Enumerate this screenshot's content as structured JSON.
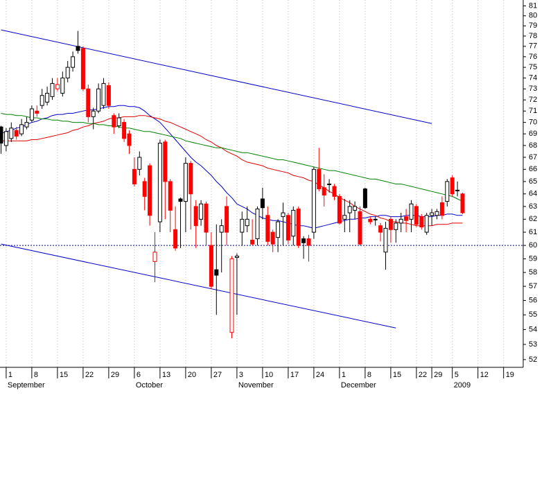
{
  "chart_data": {
    "type": "candlestick",
    "log_scale": true,
    "ylim": [
      51.5,
      81.6
    ],
    "yticks": [
      52,
      53,
      54,
      55,
      56,
      57,
      58,
      59,
      60,
      61,
      62,
      63,
      64,
      65,
      66,
      67,
      68,
      69,
      70,
      71,
      72,
      73,
      74,
      75,
      76,
      77,
      78,
      79,
      80,
      81
    ],
    "grid": true,
    "reference_line": 60,
    "colors": {
      "rising": "#000000",
      "falling": "#ff0000",
      "hollow": "#ffffff"
    },
    "categories": [
      null,
      "1",
      null,
      null,
      null,
      null,
      "8",
      null,
      null,
      null,
      null,
      "15",
      null,
      null,
      null,
      null,
      "22",
      null,
      null,
      null,
      null,
      "29",
      null,
      null,
      null,
      null,
      "6",
      null,
      null,
      null,
      null,
      "13",
      null,
      null,
      null,
      null,
      "20",
      null,
      null,
      null,
      null,
      "27",
      null,
      null,
      null,
      null,
      "3",
      null,
      null,
      null,
      null,
      "10",
      null,
      null,
      null,
      null,
      "17",
      null,
      null,
      null,
      null,
      "24",
      null,
      null,
      null,
      null,
      "1",
      null,
      null,
      null,
      null,
      "8",
      null,
      null,
      null,
      null,
      "15",
      null,
      null,
      null,
      null,
      "22",
      null,
      null,
      "29",
      null,
      null,
      null,
      "5",
      null,
      null,
      null,
      null,
      "12",
      null,
      null,
      null,
      null,
      "19",
      null,
      null,
      null
    ],
    "months": [
      null,
      "September",
      null,
      null,
      null,
      null,
      null,
      null,
      null,
      null,
      null,
      null,
      null,
      null,
      null,
      null,
      null,
      null,
      null,
      null,
      null,
      null,
      null,
      null,
      null,
      null,
      "October",
      null,
      null,
      null,
      null,
      null,
      null,
      null,
      null,
      null,
      null,
      null,
      null,
      null,
      null,
      null,
      null,
      null,
      null,
      null,
      "November",
      null,
      null,
      null,
      null,
      null,
      null,
      null,
      null,
      null,
      null,
      null,
      null,
      null,
      null,
      null,
      null,
      null,
      null,
      null,
      "December",
      null,
      null,
      null,
      null,
      null,
      null,
      null,
      null,
      null,
      null,
      null,
      null,
      null,
      null,
      null,
      null,
      null,
      null,
      null,
      null,
      null,
      "2009",
      null,
      null,
      null,
      null,
      null,
      null,
      null,
      null,
      null,
      null,
      null,
      null,
      null
    ],
    "open": [
      69.6,
      68.0,
      68.6,
      69.3,
      69.0,
      69.6,
      70.2,
      71.0,
      71.5,
      71.8,
      72.3,
      73.0,
      72.6,
      74.0,
      75.0,
      77.0,
      76.8,
      73.0,
      70.5,
      71.0,
      71.5,
      73.3,
      70.6,
      69.7,
      70.0,
      69.0,
      66.0,
      66.0,
      65.0,
      66.3,
      58.8,
      61.8,
      68.3,
      65.0,
      61.2,
      63.6,
      63.4,
      66.5,
      63.0,
      62.0,
      63.2,
      60.0,
      58.2,
      61.0,
      63.0,
      53.8,
      59.1,
      61.0,
      61.5,
      60.4,
      60.5,
      63.6,
      62.3,
      61.0,
      60.6,
      62.2,
      62.3,
      60.7,
      62.8,
      60.5,
      60.5,
      61.0,
      66.0,
      64.5,
      64.8,
      64.6,
      63.8,
      62.0,
      62.5,
      62.7,
      62.6,
      64.4,
      62.0,
      62.0,
      61.5,
      59.5,
      62.0,
      61.2,
      61.7,
      62.2,
      62.0,
      63.0,
      62.2,
      61.0,
      62.3,
      62.3,
      63.3,
      63.4,
      65.3,
      64.3,
      64.0,
      null,
      null,
      null,
      null,
      null,
      null,
      null,
      null,
      null,
      null,
      null
    ],
    "high": [
      69.7,
      69.5,
      70.0,
      69.6,
      70.3,
      70.5,
      71.5,
      71.5,
      73.0,
      73.2,
      74.0,
      74.0,
      74.6,
      75.6,
      76.5,
      78.5,
      77.0,
      73.4,
      71.3,
      73.5,
      74.0,
      73.6,
      70.8,
      70.8,
      70.3,
      69.3,
      67.0,
      67.5,
      65.3,
      66.5,
      61.0,
      68.5,
      68.5,
      65.2,
      63.0,
      63.7,
      67.0,
      66.7,
      63.5,
      63.5,
      63.4,
      61.0,
      61.6,
      62.0,
      63.8,
      59.2,
      59.4,
      62.6,
      63.0,
      62.0,
      63.0,
      64.5,
      63.0,
      61.2,
      62.0,
      63.3,
      62.5,
      63.0,
      63.0,
      60.7,
      60.8,
      66.2,
      67.8,
      65.6,
      65.2,
      64.8,
      64.0,
      63.6,
      63.5,
      63.4,
      63.0,
      64.5,
      62.2,
      62.2,
      61.7,
      61.8,
      62.2,
      62.0,
      62.5,
      62.8,
      63.5,
      63.2,
      62.4,
      62.5,
      62.8,
      62.8,
      63.8,
      65.2,
      65.5,
      65.0,
      64.1,
      null,
      null,
      null,
      null,
      null,
      null,
      null,
      null,
      null,
      null,
      null
    ],
    "low": [
      67.3,
      67.5,
      68.3,
      68.5,
      68.8,
      69.4,
      70.0,
      70.5,
      71.2,
      71.5,
      72.0,
      72.8,
      72.3,
      73.6,
      74.6,
      76.3,
      72.8,
      70.0,
      69.4,
      70.8,
      71.2,
      71.2,
      69.0,
      69.5,
      68.3,
      67.3,
      64.6,
      65.5,
      62.7,
      61.5,
      57.3,
      61.0,
      62.0,
      61.0,
      59.6,
      59.8,
      61.0,
      61.2,
      59.8,
      61.5,
      60.0,
      56.8,
      55.0,
      58.0,
      60.0,
      53.4,
      55.0,
      60.0,
      61.0,
      60.0,
      60.0,
      62.0,
      60.0,
      59.5,
      59.5,
      60.0,
      60.1,
      60.0,
      59.8,
      59.0,
      58.8,
      60.5,
      64.2,
      63.0,
      64.1,
      63.5,
      61.6,
      61.0,
      61.0,
      62.0,
      60.0,
      62.8,
      61.6,
      61.5,
      60.3,
      58.2,
      60.2,
      60.2,
      61.0,
      61.0,
      61.0,
      61.4,
      61.2,
      60.8,
      61.5,
      62.0,
      62.0,
      63.0,
      63.8,
      63.8,
      62.4,
      null,
      null,
      null,
      null,
      null,
      null,
      null,
      null,
      null,
      null,
      null
    ],
    "close": [
      68.2,
      69.2,
      69.5,
      68.8,
      69.8,
      70.0,
      71.2,
      70.8,
      72.4,
      72.6,
      73.5,
      73.4,
      74.0,
      75.0,
      76.0,
      76.6,
      73.0,
      70.5,
      71.0,
      73.0,
      73.5,
      71.5,
      69.6,
      70.4,
      68.6,
      68.0,
      64.8,
      67.0,
      63.8,
      62.3,
      59.5,
      68.2,
      65.0,
      62.7,
      59.8,
      63.4,
      66.5,
      64.0,
      61.5,
      63.2,
      61.0,
      57.0,
      57.8,
      61.5,
      61.0,
      59.0,
      59.2,
      62.0,
      62.0,
      60.1,
      62.8,
      62.9,
      60.3,
      60.1,
      61.8,
      62.5,
      60.4,
      62.7,
      60.0,
      60.2,
      60.0,
      66.0,
      64.4,
      63.9,
      64.8,
      63.8,
      61.7,
      62.3,
      63.0,
      63.0,
      60.1,
      62.9,
      61.8,
      62.0,
      61.0,
      61.3,
      61.2,
      61.7,
      62.0,
      61.9,
      63.2,
      61.6,
      61.4,
      62.3,
      62.5,
      62.6,
      62.3,
      65.0,
      64.0,
      64.3,
      62.5,
      null,
      null,
      null,
      null,
      null,
      null,
      null,
      null,
      null,
      null,
      null
    ],
    "series": [
      {
        "color": "#0000cc",
        "values": [
          69.0,
          69.2,
          69.3,
          69.5,
          69.6,
          69.8,
          70.0,
          70.1,
          70.3,
          70.4,
          70.6,
          70.7,
          70.7,
          70.8,
          70.8,
          70.9,
          71.0,
          71.1,
          71.1,
          71.2,
          71.3,
          71.4,
          71.4,
          71.5,
          71.5,
          71.4,
          71.4,
          71.3,
          71.0,
          70.6,
          70.3,
          70.0,
          69.5,
          69.0,
          68.5,
          68.0,
          67.5,
          67.0,
          66.6,
          66.3,
          65.9,
          65.5,
          65.0,
          64.6,
          64.1,
          63.7,
          63.2,
          63.0,
          62.8,
          62.5,
          62.3,
          62.1,
          62.0,
          61.9,
          61.9,
          61.8,
          61.7,
          61.6,
          61.5,
          61.5,
          61.4,
          61.3,
          61.4,
          61.5,
          61.6,
          61.7,
          61.8,
          61.9,
          62.0,
          62.0,
          62.1,
          62.1,
          62.2,
          62.2,
          62.3,
          62.3,
          62.2,
          62.2,
          62.2,
          62.3,
          62.3,
          62.3,
          62.2,
          62.2,
          62.2,
          62.3,
          62.3,
          62.4,
          62.4,
          62.3,
          62.3,
          null,
          null,
          null,
          null,
          null,
          null,
          null,
          null,
          null,
          null,
          null
        ]
      },
      {
        "color": "#e00000",
        "values": [
          68.4,
          68.4,
          68.4,
          68.4,
          68.4,
          68.4,
          68.5,
          68.5,
          68.6,
          68.7,
          68.8,
          68.9,
          69.0,
          69.1,
          69.3,
          69.4,
          69.6,
          69.7,
          69.9,
          70.0,
          70.1,
          70.3,
          70.4,
          70.4,
          70.5,
          70.5,
          70.5,
          70.6,
          70.6,
          70.5,
          70.4,
          70.3,
          70.1,
          70.0,
          69.8,
          69.6,
          69.4,
          69.2,
          69.0,
          68.8,
          68.5,
          68.3,
          68.0,
          67.8,
          67.5,
          67.3,
          67.1,
          66.8,
          66.6,
          66.5,
          66.4,
          66.3,
          66.1,
          66.0,
          65.9,
          65.8,
          65.7,
          65.5,
          65.4,
          65.3,
          65.1,
          65.0,
          64.7,
          64.5,
          64.2,
          64.0,
          63.7,
          63.5,
          63.3,
          63.0,
          62.8,
          62.6,
          62.4,
          62.3,
          62.1,
          62.0,
          61.8,
          61.8,
          61.7,
          61.7,
          61.6,
          61.5,
          61.5,
          61.5,
          61.5,
          61.6,
          61.6,
          61.6,
          61.7,
          61.7,
          61.7,
          null,
          null,
          null,
          null,
          null,
          null,
          null,
          null,
          null,
          null,
          null
        ]
      },
      {
        "color": "#008000",
        "values": [
          70.8,
          70.7,
          70.7,
          70.6,
          70.6,
          70.5,
          70.4,
          70.4,
          70.3,
          70.3,
          70.2,
          70.2,
          70.1,
          70.1,
          70.0,
          70.0,
          70.0,
          69.9,
          69.9,
          69.8,
          69.8,
          69.7,
          69.7,
          69.6,
          69.5,
          69.5,
          69.4,
          69.3,
          69.2,
          69.2,
          69.1,
          69.0,
          68.9,
          68.8,
          68.7,
          68.6,
          68.4,
          68.3,
          68.2,
          68.1,
          68.0,
          67.9,
          67.8,
          67.8,
          67.7,
          67.6,
          67.5,
          67.4,
          67.4,
          67.3,
          67.2,
          67.1,
          67.0,
          66.9,
          66.8,
          66.8,
          66.7,
          66.6,
          66.5,
          66.4,
          66.3,
          66.2,
          66.1,
          66.0,
          65.9,
          65.9,
          65.8,
          65.7,
          65.6,
          65.5,
          65.4,
          65.3,
          65.2,
          65.2,
          65.1,
          65.0,
          64.9,
          64.8,
          64.8,
          64.7,
          64.6,
          64.5,
          64.4,
          64.3,
          64.2,
          64.1,
          64.0,
          63.9,
          63.8,
          63.6,
          63.4,
          null,
          null,
          null,
          null,
          null,
          null,
          null,
          null,
          null,
          null,
          null
        ]
      }
    ],
    "trendlines": [
      {
        "color": "#0000cc",
        "x": [
          0,
          84
        ],
        "values": [
          78.6,
          69.9
        ]
      },
      {
        "color": "#0000cc",
        "x": [
          0,
          77
        ],
        "values": [
          60.1,
          54.1
        ]
      }
    ]
  }
}
